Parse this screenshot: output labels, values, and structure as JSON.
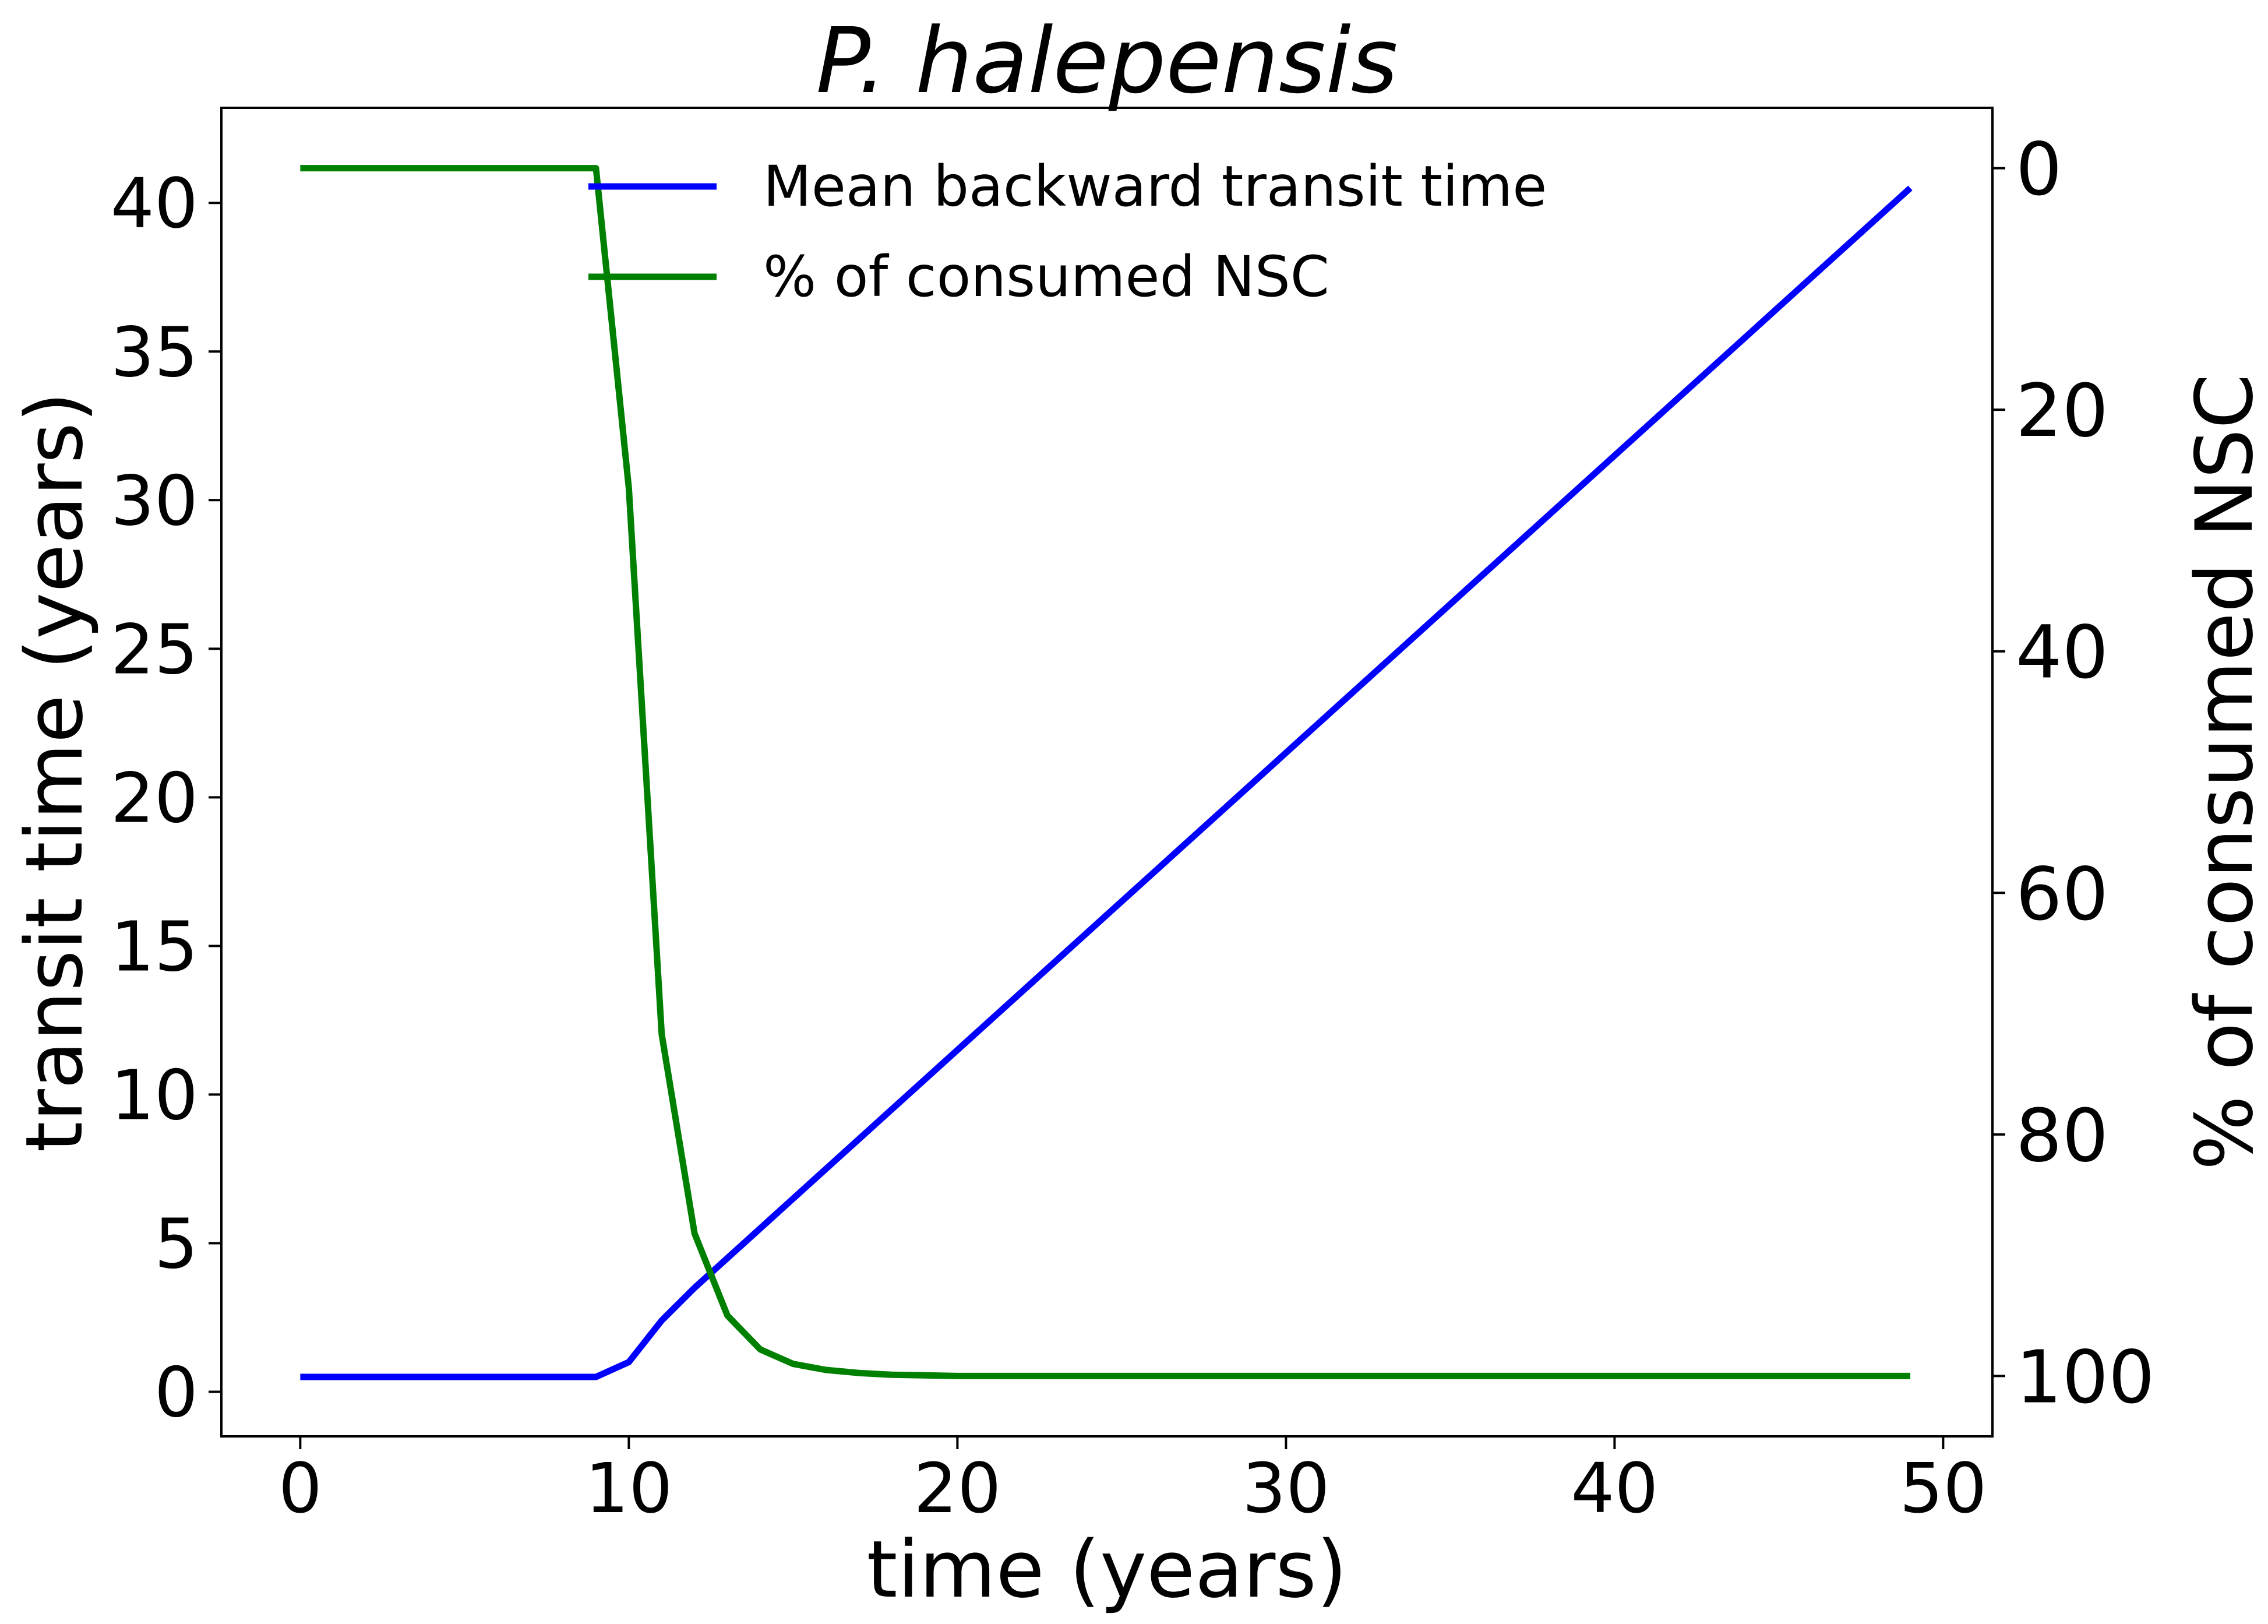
{
  "chart_data": {
    "type": "line",
    "title": "P. halepensis",
    "xlabel": "time (years)",
    "ylabel": "transit time (years)",
    "ylabel_right": "% of consumed NSC",
    "xlim": [
      -2.4,
      51.5
    ],
    "ylim": [
      -1.5,
      43.2
    ],
    "ylim_right_inverted": [
      105,
      -5
    ],
    "x_ticks": [
      "0",
      "10",
      "20",
      "30",
      "40",
      "50"
    ],
    "y_ticks": [
      "0",
      "5",
      "10",
      "15",
      "20",
      "25",
      "30",
      "35",
      "40"
    ],
    "y_ticks_right": [
      "0",
      "20",
      "40",
      "60",
      "80",
      "100"
    ],
    "grid": false,
    "legend_position": "upper-center",
    "series": [
      {
        "name": "Mean backward transit time",
        "axis": "left",
        "color": "#0000ff",
        "x": [
          0,
          1,
          2,
          3,
          4,
          5,
          6,
          7,
          8,
          9,
          10,
          11,
          12,
          13,
          14,
          15,
          16,
          17,
          18,
          19,
          20,
          21,
          22,
          23,
          24,
          25,
          26,
          27,
          28,
          29,
          30,
          31,
          32,
          33,
          34,
          35,
          36,
          37,
          38,
          39,
          40,
          41,
          42,
          43,
          44,
          45,
          46,
          47,
          48,
          49
        ],
        "values": [
          0.5,
          0.5,
          0.5,
          0.5,
          0.5,
          0.5,
          0.5,
          0.5,
          0.5,
          0.5,
          1.0,
          2.4,
          3.5,
          4.5,
          5.5,
          6.5,
          7.5,
          8.5,
          9.5,
          10.5,
          11.5,
          12.5,
          13.5,
          14.5,
          15.5,
          16.5,
          17.5,
          18.5,
          19.5,
          20.5,
          21.5,
          22.5,
          23.5,
          24.5,
          25.5,
          26.5,
          27.5,
          28.5,
          29.5,
          30.5,
          31.5,
          32.5,
          33.5,
          34.5,
          35.5,
          36.5,
          37.5,
          38.5,
          39.5,
          40.5
        ]
      },
      {
        "name": "% of consumed NSC",
        "axis": "right",
        "color": "#008000",
        "x": [
          0,
          1,
          2,
          3,
          4,
          5,
          6,
          7,
          8,
          9,
          10,
          11,
          12,
          13,
          14,
          15,
          16,
          17,
          18,
          19,
          20,
          21,
          22,
          23,
          24,
          25,
          26,
          27,
          28,
          29,
          30,
          31,
          32,
          33,
          34,
          35,
          36,
          37,
          38,
          39,
          40,
          41,
          42,
          43,
          44,
          45,
          46,
          47,
          48,
          49
        ],
        "values": [
          0,
          0,
          0,
          0,
          0,
          0,
          0,
          0,
          0,
          0,
          26.5,
          71.7,
          88.2,
          95.0,
          97.8,
          99.0,
          99.5,
          99.75,
          99.9,
          99.95,
          100,
          100,
          100,
          100,
          100,
          100,
          100,
          100,
          100,
          100,
          100,
          100,
          100,
          100,
          100,
          100,
          100,
          100,
          100,
          100,
          100,
          100,
          100,
          100,
          100,
          100,
          100,
          100,
          100,
          100
        ]
      }
    ]
  }
}
